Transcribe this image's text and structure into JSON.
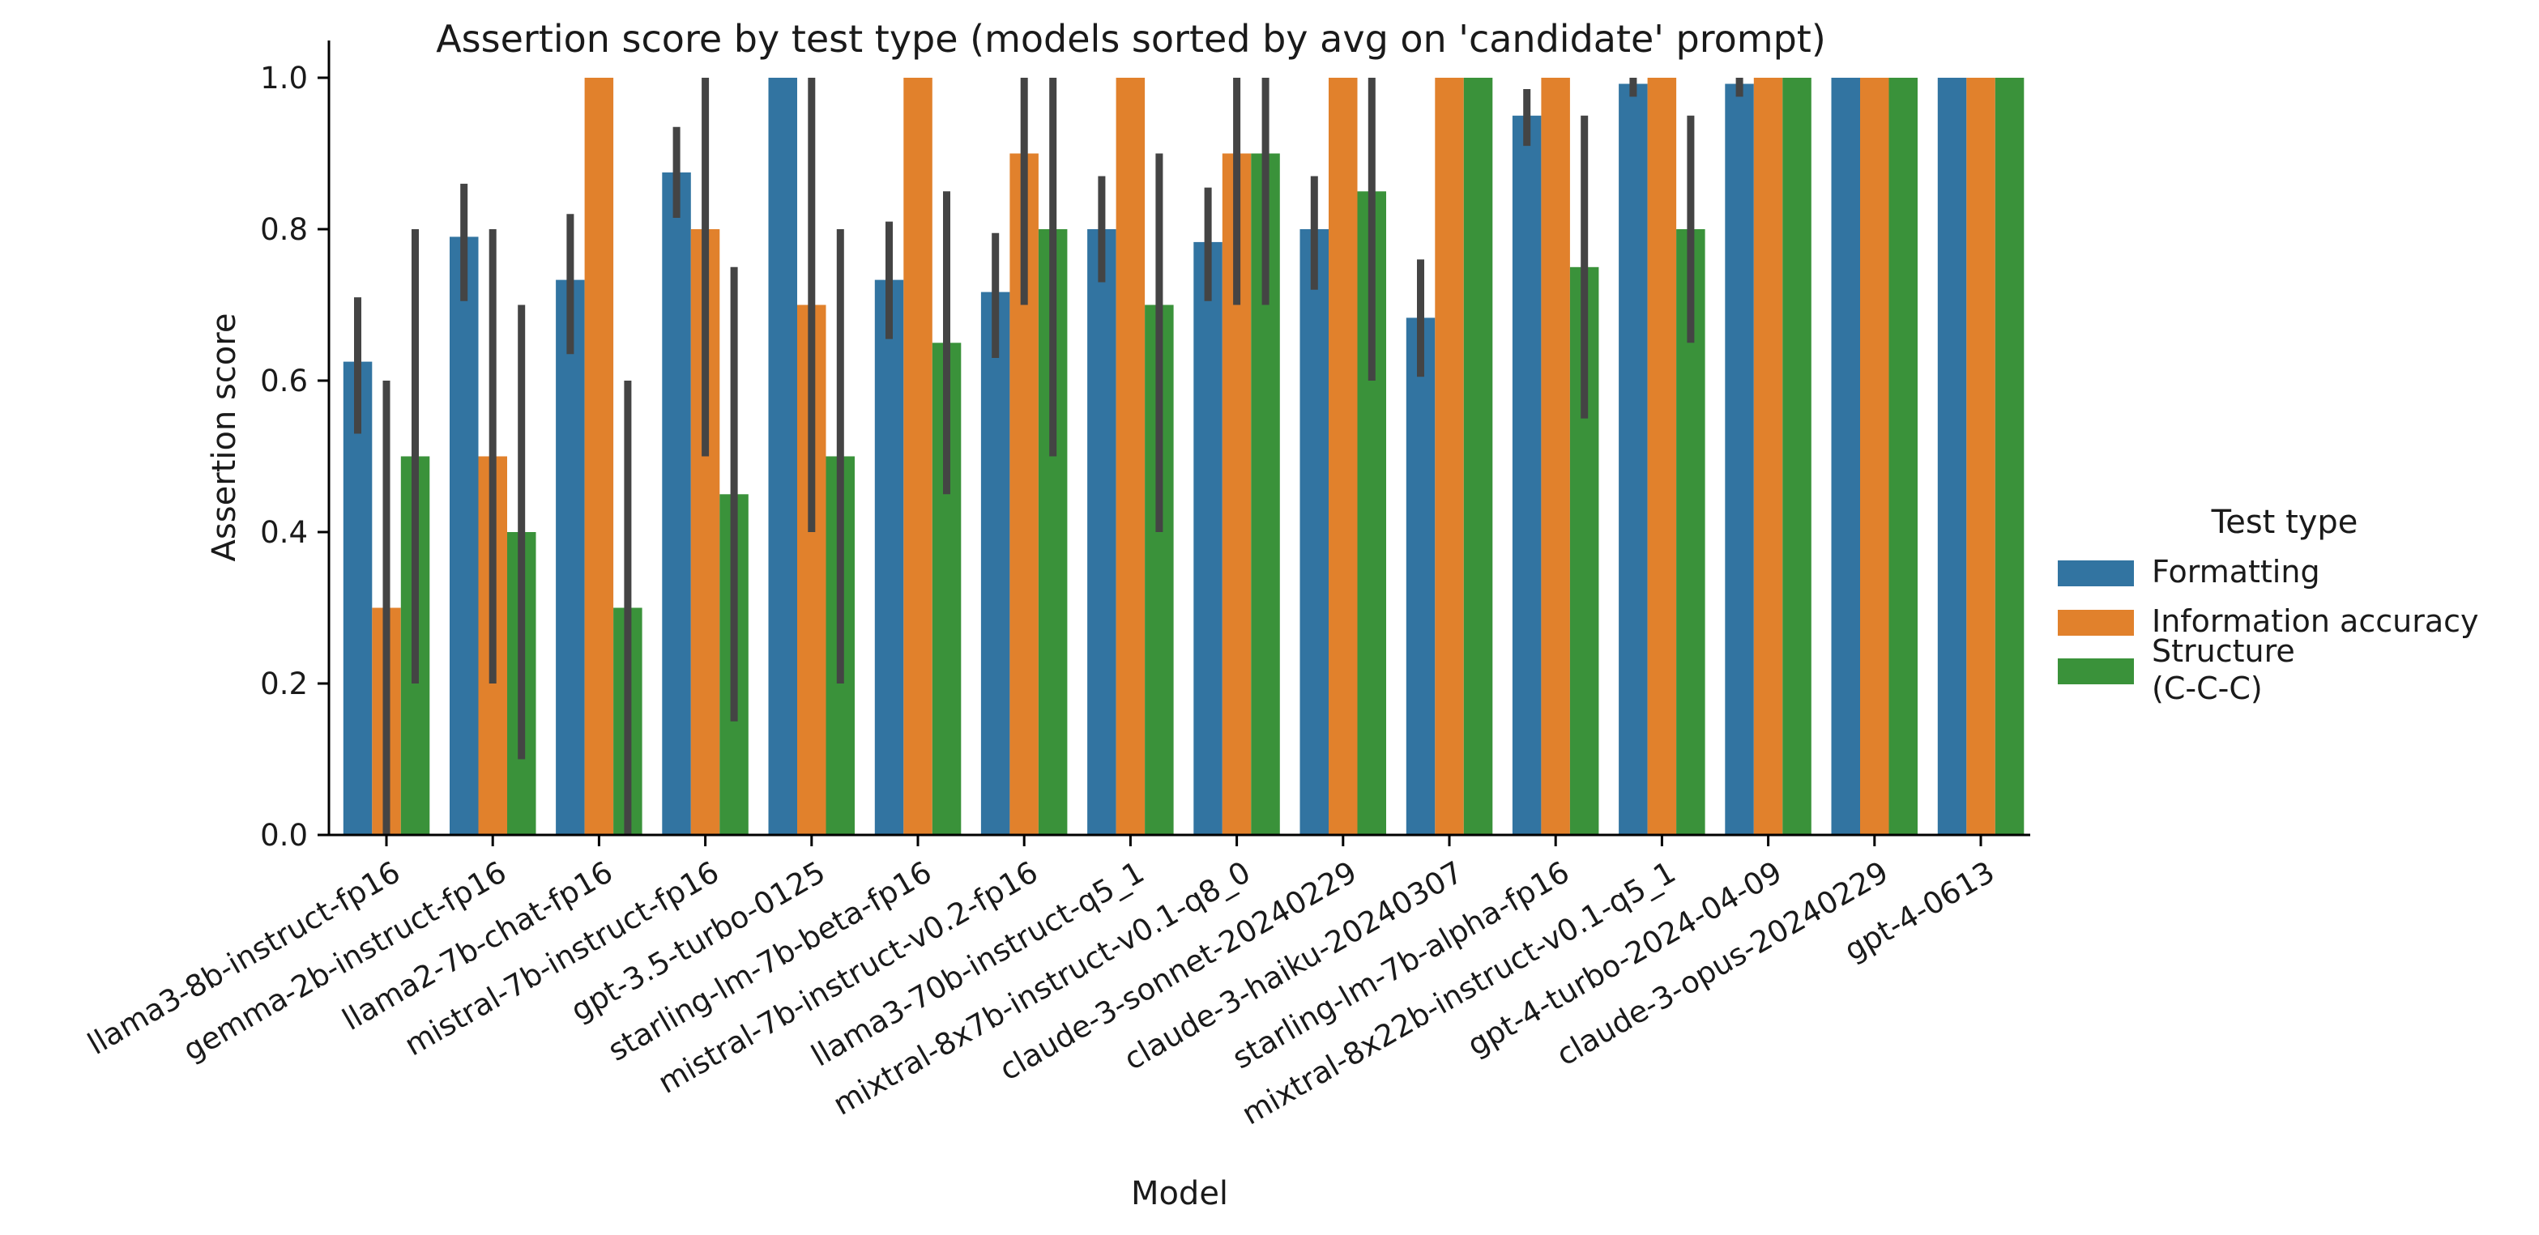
{
  "chart_data": {
    "type": "bar",
    "title": "Assertion score by test type (models sorted by avg on 'candidate' prompt)",
    "xlabel": "Model",
    "ylabel": "Assertion score",
    "ylim": [
      0,
      1.0
    ],
    "yticks": [
      "0.0",
      "0.2",
      "0.4",
      "0.6",
      "0.8",
      "1.0"
    ],
    "grid": false,
    "legend_title": "Test type",
    "legend_position": "right",
    "categories": [
      "llama3-8b-instruct-fp16",
      "gemma-2b-instruct-fp16",
      "llama2-7b-chat-fp16",
      "mistral-7b-instruct-fp16",
      "gpt-3.5-turbo-0125",
      "starling-lm-7b-beta-fp16",
      "mistral-7b-instruct-v0.2-fp16",
      "llama3-70b-instruct-q5_1",
      "mixtral-8x7b-instruct-v0.1-q8_0",
      "claude-3-sonnet-20240229",
      "claude-3-haiku-20240307",
      "starling-lm-7b-alpha-fp16",
      "mixtral-8x22b-instruct-v0.1-q5_1",
      "gpt-4-turbo-2024-04-09",
      "claude-3-opus-20240229",
      "gpt-4-0613"
    ],
    "series": [
      {
        "name": "Formatting",
        "color": "#3274a1",
        "values": [
          0.625,
          0.79,
          0.733,
          0.875,
          1.0,
          0.733,
          0.717,
          0.8,
          0.783,
          0.8,
          0.683,
          0.95,
          0.992,
          0.992,
          1.0,
          1.0
        ],
        "ci": [
          [
            0.53,
            0.71
          ],
          [
            0.705,
            0.86
          ],
          [
            0.635,
            0.82
          ],
          [
            0.815,
            0.935
          ],
          null,
          [
            0.655,
            0.81
          ],
          [
            0.63,
            0.795
          ],
          [
            0.73,
            0.87
          ],
          [
            0.705,
            0.855
          ],
          [
            0.72,
            0.87
          ],
          [
            0.605,
            0.76
          ],
          [
            0.91,
            0.985
          ],
          [
            0.975,
            1.0
          ],
          [
            0.975,
            1.0
          ],
          null,
          null
        ]
      },
      {
        "name": "Information accuracy",
        "color": "#e1812c",
        "values": [
          0.3,
          0.5,
          1.0,
          0.8,
          0.7,
          1.0,
          0.9,
          1.0,
          0.9,
          1.0,
          1.0,
          1.0,
          1.0,
          1.0,
          1.0,
          1.0
        ],
        "ci": [
          [
            0.0,
            0.6
          ],
          [
            0.2,
            0.8
          ],
          null,
          [
            0.5,
            1.0
          ],
          [
            0.4,
            1.0
          ],
          null,
          [
            0.7,
            1.0
          ],
          null,
          [
            0.7,
            1.0
          ],
          null,
          null,
          null,
          null,
          null,
          null,
          null
        ]
      },
      {
        "name": "Structure\n(C-C-C)",
        "color": "#3a923a",
        "values": [
          0.5,
          0.4,
          0.3,
          0.45,
          0.5,
          0.65,
          0.8,
          0.7,
          0.9,
          0.85,
          1.0,
          0.75,
          0.8,
          1.0,
          1.0,
          1.0
        ],
        "ci": [
          [
            0.2,
            0.8
          ],
          [
            0.1,
            0.7
          ],
          [
            0.0,
            0.6
          ],
          [
            0.15,
            0.75
          ],
          [
            0.2,
            0.8
          ],
          [
            0.45,
            0.85
          ],
          [
            0.5,
            1.0
          ],
          [
            0.4,
            0.9
          ],
          [
            0.7,
            1.0
          ],
          [
            0.6,
            1.0
          ],
          null,
          [
            0.55,
            0.95
          ],
          [
            0.65,
            0.95
          ],
          null,
          null,
          null
        ]
      }
    ]
  }
}
